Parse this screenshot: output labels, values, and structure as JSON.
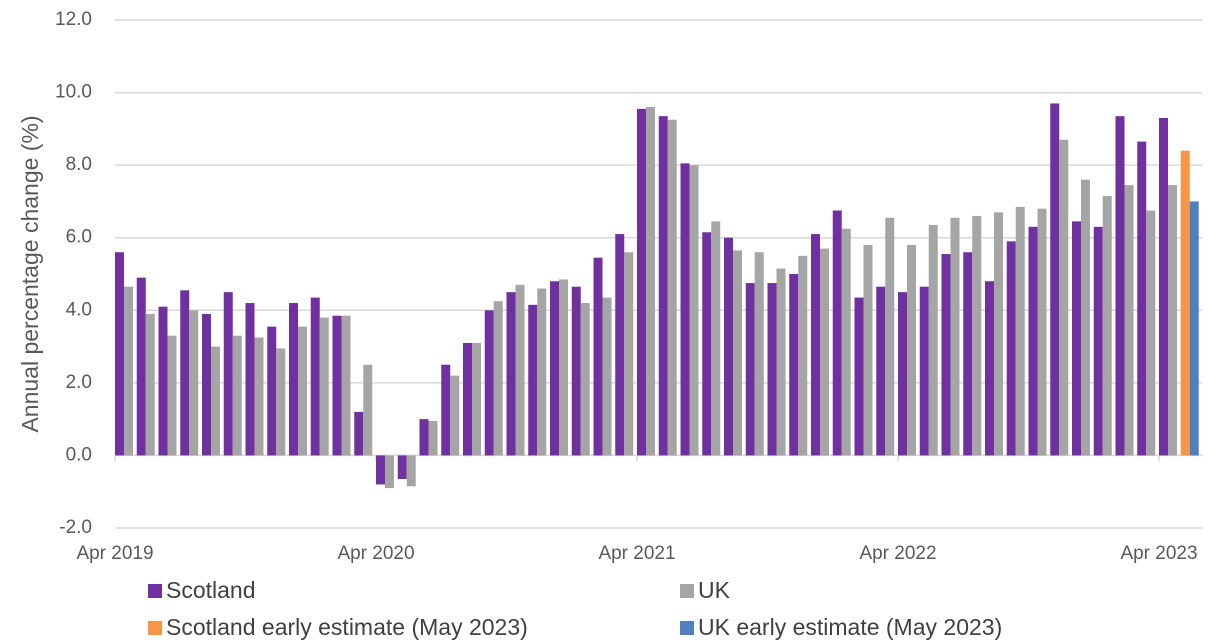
{
  "chart_data": {
    "type": "bar",
    "y_label": "Annual percentage change (%)",
    "categories": [
      "Apr 2019",
      null,
      null,
      null,
      null,
      null,
      null,
      null,
      null,
      null,
      null,
      null,
      "Apr 2020",
      null,
      null,
      null,
      null,
      null,
      null,
      null,
      null,
      null,
      null,
      null,
      "Apr 2021",
      null,
      null,
      null,
      null,
      null,
      null,
      null,
      null,
      null,
      null,
      null,
      "Apr 2022",
      null,
      null,
      null,
      null,
      null,
      null,
      null,
      null,
      null,
      null,
      null,
      "Apr 2023",
      null
    ],
    "series": [
      {
        "name": "Scotland",
        "color": "#7030a0",
        "values": [
          5.6,
          4.9,
          4.1,
          4.55,
          3.9,
          4.5,
          4.2,
          3.55,
          4.2,
          4.35,
          3.85,
          1.2,
          -0.8,
          -0.65,
          1.0,
          2.5,
          3.1,
          4.0,
          4.5,
          4.15,
          4.8,
          4.65,
          5.45,
          6.1,
          9.55,
          9.35,
          8.05,
          6.15,
          6.0,
          4.75,
          4.75,
          5.0,
          6.1,
          6.75,
          4.35,
          4.65,
          4.5,
          4.65,
          5.55,
          5.6,
          4.8,
          5.9,
          6.3,
          9.7,
          6.45,
          6.3,
          9.35,
          8.65,
          9.3,
          null
        ]
      },
      {
        "name": "UK",
        "color": "#a5a5a5",
        "values": [
          4.65,
          3.9,
          3.3,
          4.0,
          3.0,
          3.3,
          3.25,
          2.95,
          3.55,
          3.8,
          3.85,
          2.5,
          -0.9,
          -0.85,
          0.95,
          2.2,
          3.1,
          4.25,
          4.7,
          4.6,
          4.85,
          4.2,
          4.35,
          5.6,
          9.6,
          9.25,
          8.0,
          6.45,
          5.65,
          5.6,
          5.15,
          5.5,
          5.7,
          6.25,
          5.8,
          6.55,
          5.8,
          6.35,
          6.55,
          6.6,
          6.7,
          6.85,
          6.8,
          8.7,
          7.6,
          7.15,
          7.45,
          6.75,
          7.45,
          null
        ]
      },
      {
        "name": "Scotland early estimate (May 2023)",
        "color": "#f79646",
        "values": [
          null,
          null,
          null,
          null,
          null,
          null,
          null,
          null,
          null,
          null,
          null,
          null,
          null,
          null,
          null,
          null,
          null,
          null,
          null,
          null,
          null,
          null,
          null,
          null,
          null,
          null,
          null,
          null,
          null,
          null,
          null,
          null,
          null,
          null,
          null,
          null,
          null,
          null,
          null,
          null,
          null,
          null,
          null,
          null,
          null,
          null,
          null,
          null,
          null,
          8.4
        ]
      },
      {
        "name": "UK early estimate (May 2023)",
        "color": "#4f81bd",
        "values": [
          null,
          null,
          null,
          null,
          null,
          null,
          null,
          null,
          null,
          null,
          null,
          null,
          null,
          null,
          null,
          null,
          null,
          null,
          null,
          null,
          null,
          null,
          null,
          null,
          null,
          null,
          null,
          null,
          null,
          null,
          null,
          null,
          null,
          null,
          null,
          null,
          null,
          null,
          null,
          null,
          null,
          null,
          null,
          null,
          null,
          null,
          null,
          null,
          null,
          7.0
        ]
      }
    ],
    "ylim": [
      -2,
      12
    ],
    "yticks": [
      {
        "value": -2,
        "label": "-2.0"
      },
      {
        "value": 0,
        "label": "0.0"
      },
      {
        "value": 2,
        "label": "2.0"
      },
      {
        "value": 4,
        "label": "4.0"
      },
      {
        "value": 6,
        "label": "6.0"
      },
      {
        "value": 8,
        "label": "8.0"
      },
      {
        "value": 10,
        "label": "10.0"
      },
      {
        "value": 12,
        "label": "12.0"
      }
    ],
    "grid": true
  }
}
